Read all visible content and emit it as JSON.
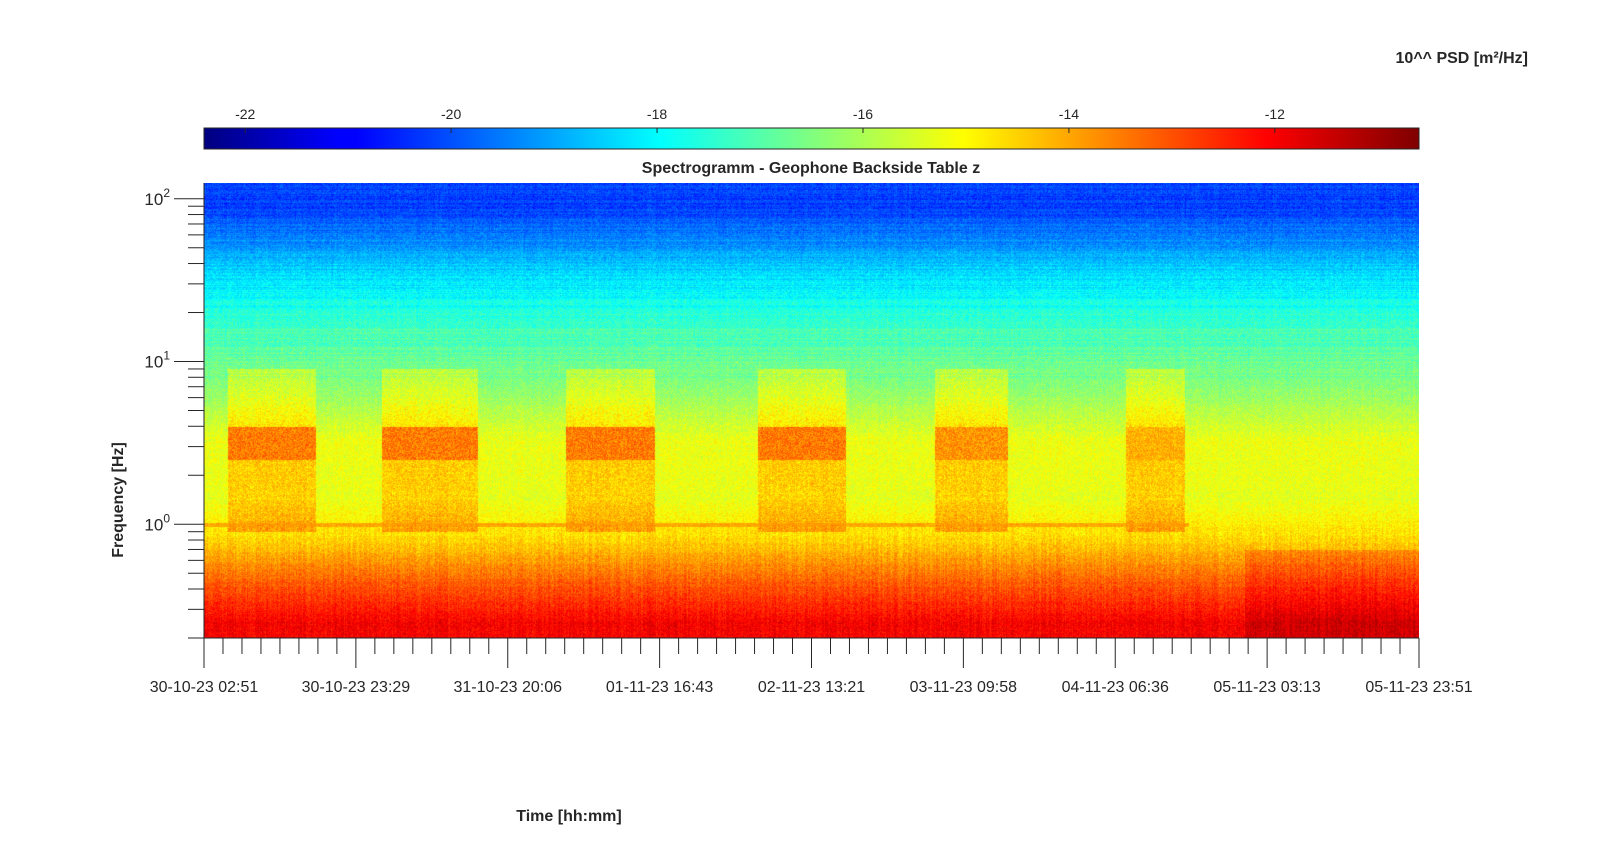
{
  "chart_data": {
    "type": "heatmap",
    "title": "Spectrogramm - Geophone Backside Table z",
    "xlabel": "Time [hh:mm]",
    "ylabel": "Frequency [Hz]",
    "colorbar": {
      "label": "10^^ PSD [m²/Hz]",
      "position": "top",
      "colormap": "jet",
      "range": [
        -22.4,
        -10.6
      ],
      "ticks": [
        -22,
        -20,
        -18,
        -16,
        -14,
        -12
      ]
    },
    "x_ticks": [
      "30-10-23 02:51",
      "30-10-23 23:29",
      "31-10-23 20:06",
      "01-11-23 16:43",
      "02-11-23 13:21",
      "03-11-23 09:58",
      "04-11-23 06:36",
      "05-11-23 03:13",
      "05-11-23 23:51"
    ],
    "x_range": [
      "30-10-23 02:51",
      "05-11-23 23:51"
    ],
    "y_scale": "log",
    "y_range": [
      0.2,
      125
    ],
    "y_ticks": [
      {
        "base": "10",
        "exp": "0",
        "value": 1
      },
      {
        "base": "10",
        "exp": "1",
        "value": 10
      },
      {
        "base": "10",
        "exp": "2",
        "value": 100
      }
    ],
    "bands": [
      {
        "f_from": 0.2,
        "f_to": 0.3,
        "log10_psd": -12.0
      },
      {
        "f_from": 0.3,
        "f_to": 0.7,
        "log10_psd": -13.2
      },
      {
        "f_from": 0.7,
        "f_to": 1.0,
        "log10_psd": -14.6
      },
      {
        "f_from": 1.0,
        "f_to": 2.0,
        "log10_psd": -15.3
      },
      {
        "f_from": 2.0,
        "f_to": 5.0,
        "log10_psd": -15.2
      },
      {
        "f_from": 5.0,
        "f_to": 10.0,
        "log10_psd": -16.4
      },
      {
        "f_from": 10.0,
        "f_to": 25.0,
        "log10_psd": -17.2
      },
      {
        "f_from": 25.0,
        "f_to": 60.0,
        "log10_psd": -18.6
      },
      {
        "f_from": 60.0,
        "f_to": 125.0,
        "log10_psd": -20.2
      }
    ],
    "activity_bursts": [
      {
        "from": "30-10-23 06:00",
        "to": "30-10-23 18:00",
        "f_from": 2.5,
        "f_to": 4.0,
        "log10_psd": -13.5
      },
      {
        "from": "31-10-23 03:00",
        "to": "31-10-23 16:00",
        "f_from": 2.5,
        "f_to": 4.0,
        "log10_psd": -13.5
      },
      {
        "from": "01-11-23 04:00",
        "to": "01-11-23 16:00",
        "f_from": 2.5,
        "f_to": 4.0,
        "log10_psd": -13.5
      },
      {
        "from": "02-11-23 06:00",
        "to": "02-11-23 18:00",
        "f_from": 2.5,
        "f_to": 4.0,
        "log10_psd": -13.5
      },
      {
        "from": "03-11-23 06:00",
        "to": "03-11-23 16:00",
        "f_from": 2.5,
        "f_to": 4.0,
        "log10_psd": -13.8
      },
      {
        "from": "04-11-23 08:00",
        "to": "04-11-23 16:00",
        "f_from": 2.5,
        "f_to": 4.0,
        "log10_psd": -14.2
      }
    ],
    "line_1hz": {
      "f": 1.0,
      "log10_psd": -14.0
    },
    "grid": false
  }
}
